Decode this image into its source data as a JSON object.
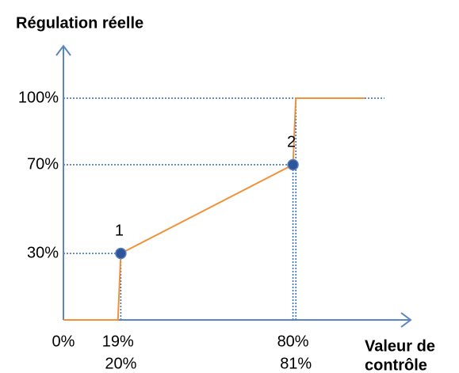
{
  "chart_data": {
    "type": "line",
    "title": "Régulation réelle",
    "x_label": [
      "Valeur de",
      "contrôle"
    ],
    "x": [
      0,
      19,
      20,
      80,
      81,
      105
    ],
    "series": [
      {
        "color": "#f0923a",
        "values": [
          0,
          0,
          30,
          70,
          100,
          100
        ]
      }
    ],
    "xlim": [
      0,
      121
    ],
    "ylim": [
      0,
      100
    ],
    "xticks": [
      {
        "value": 0,
        "label": "0%"
      },
      {
        "value": 19,
        "label": "19%"
      },
      {
        "value": 20,
        "label": "20%"
      },
      {
        "value": 80,
        "label": "80%"
      },
      {
        "value": 81,
        "label": "81%"
      }
    ],
    "yticks": [
      {
        "value": 30,
        "label": "30%"
      },
      {
        "value": 70,
        "label": "70%"
      },
      {
        "value": 100,
        "label": "100%"
      }
    ],
    "annotations": [
      {
        "text": "1",
        "x": 20,
        "y": 30
      },
      {
        "text": "2",
        "x": 80,
        "y": 70
      }
    ],
    "guide_color": "#2f6db5",
    "axis_color": "#5b86c5",
    "marker_color": "#2e5597"
  }
}
